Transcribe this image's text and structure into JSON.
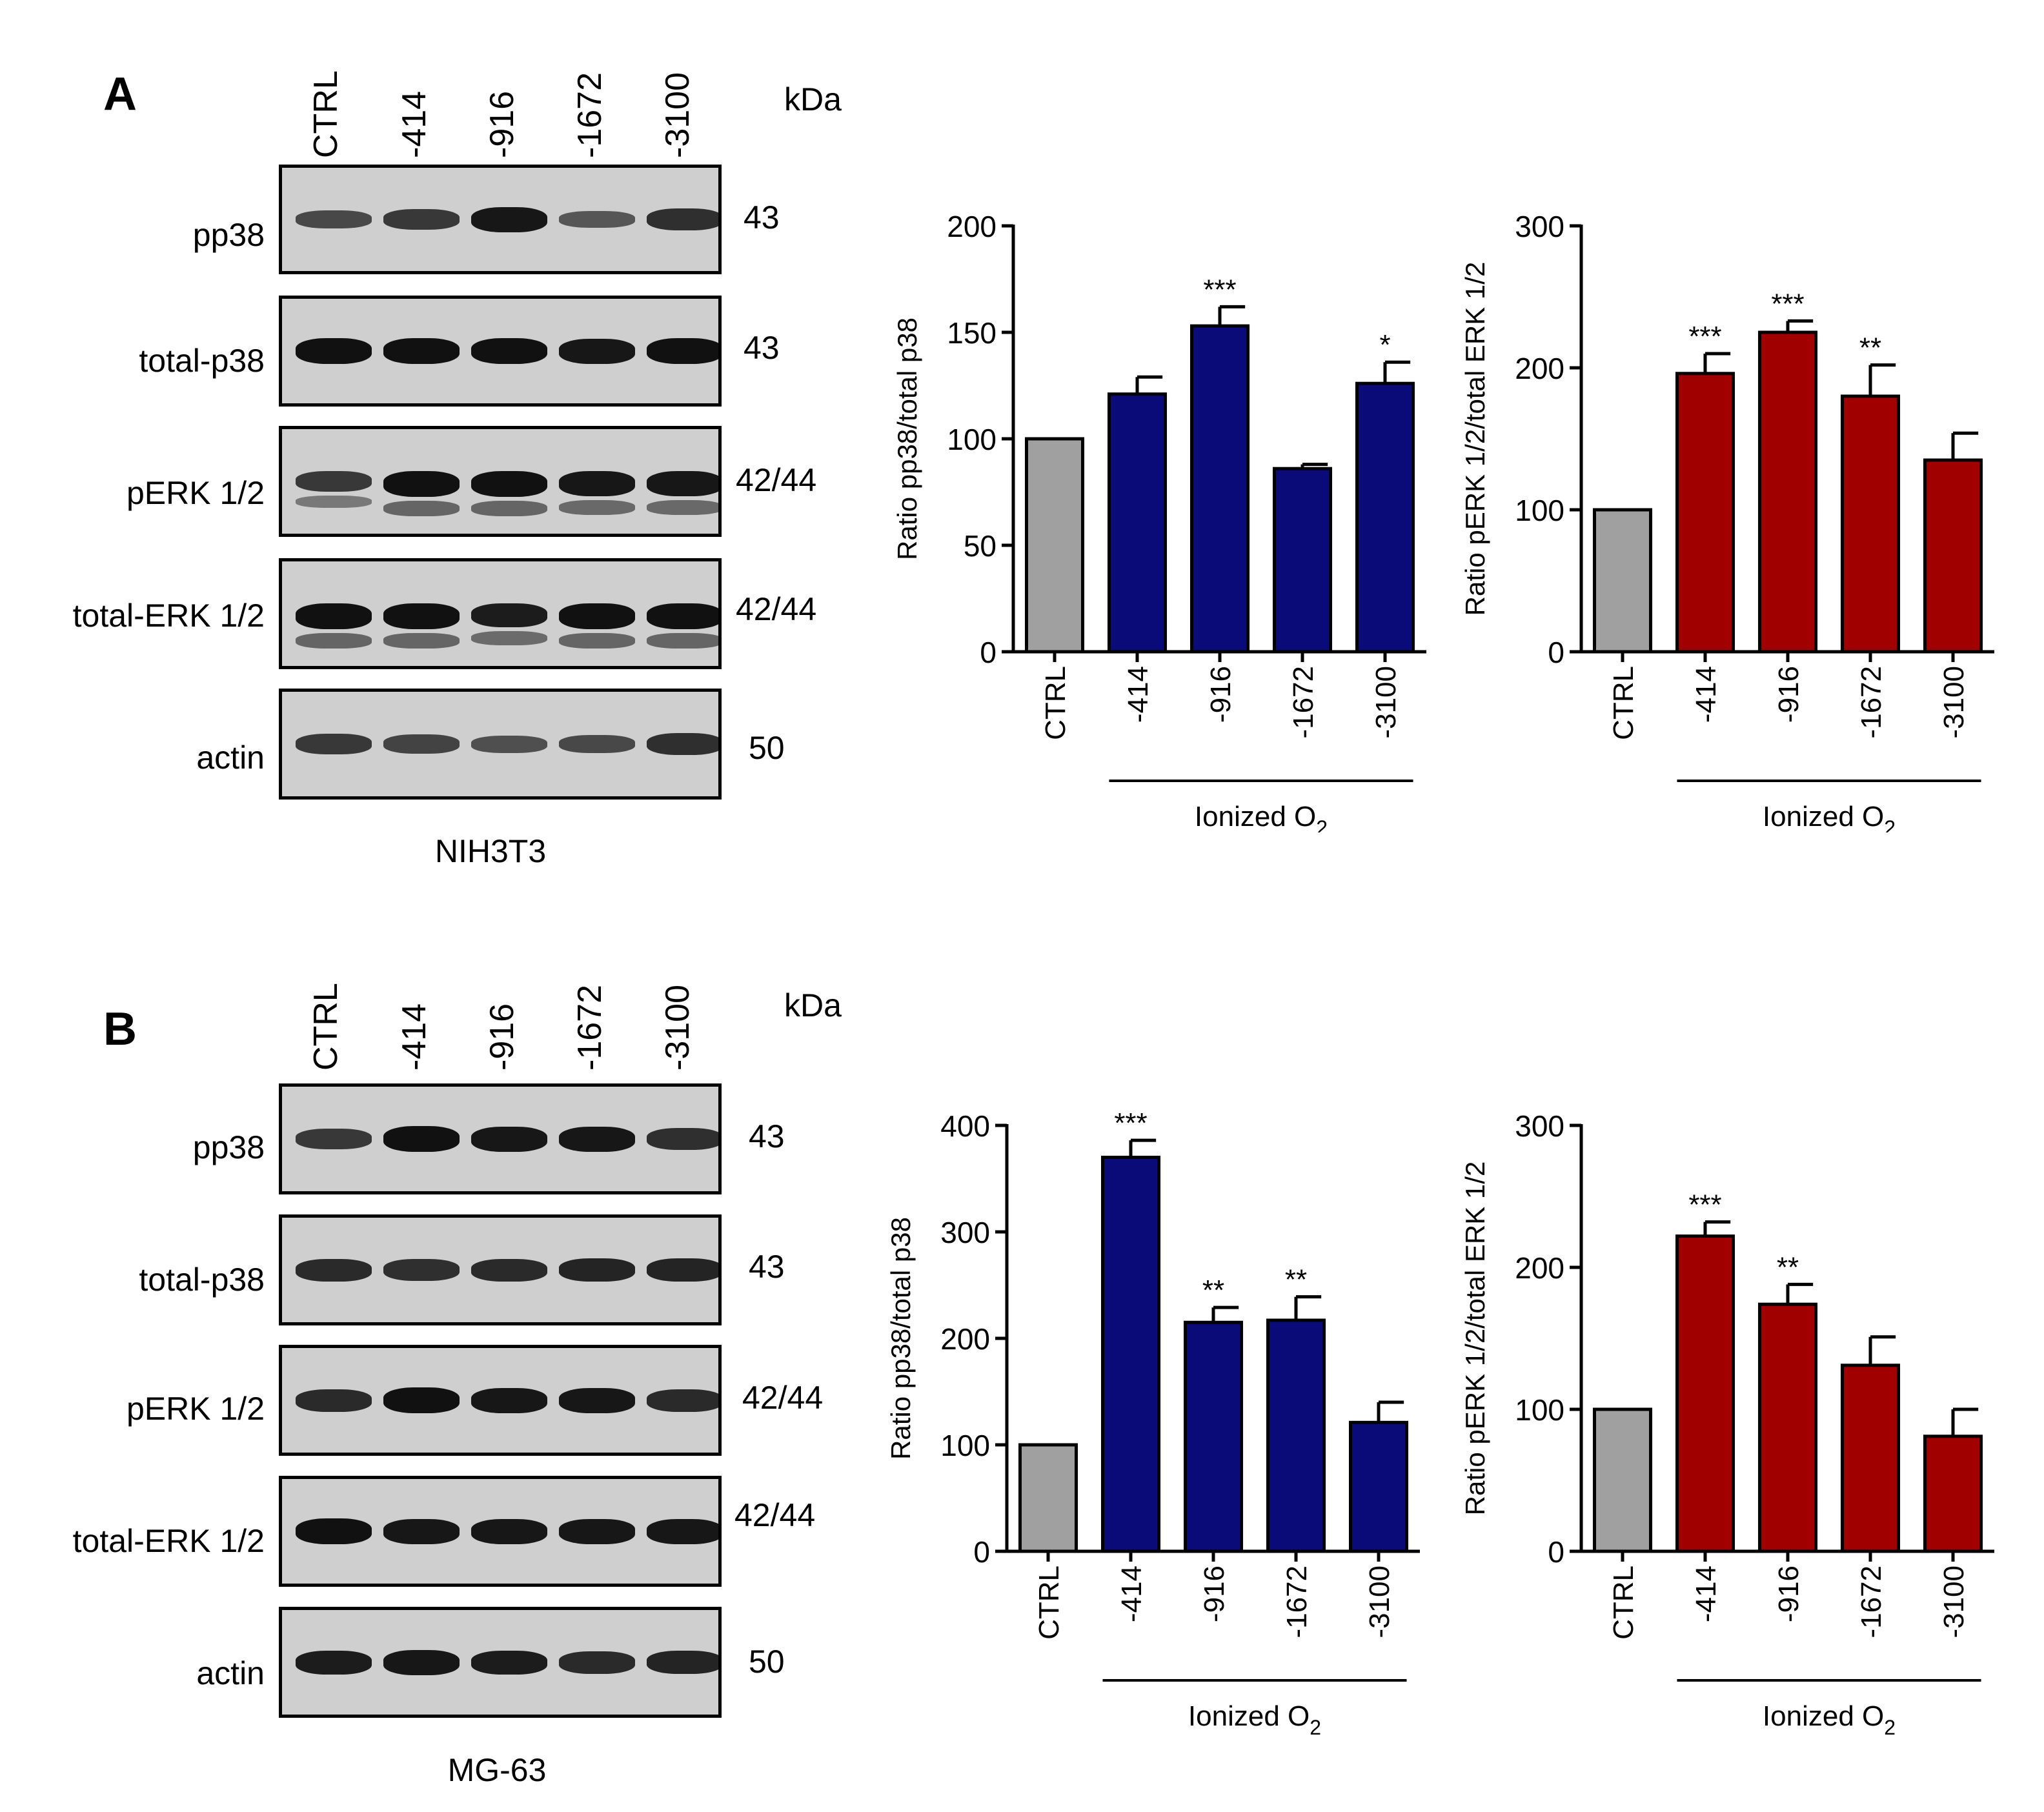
{
  "panels": [
    {
      "letter": "A",
      "cell_line": "NIH3T3",
      "kda_label": "kDa",
      "lanes": [
        "CTRL",
        "-414",
        "-916",
        "-1672",
        "-3100"
      ],
      "blots": [
        {
          "label": "pp38",
          "mw": "43",
          "intensity": [
            0.55,
            0.7,
            0.95,
            0.45,
            0.75
          ],
          "double": false
        },
        {
          "label": "total-p38",
          "mw": "43",
          "intensity": [
            1,
            1,
            1,
            0.95,
            1
          ],
          "double": false
        },
        {
          "label": "pERK 1/2",
          "mw": "42/44",
          "intensity": [
            0.7,
            1,
            1,
            0.95,
            0.95
          ],
          "double": true
        },
        {
          "label": "total-ERK 1/2",
          "mw": "42/44",
          "intensity": [
            1,
            1,
            0.9,
            1,
            1
          ],
          "double": true
        },
        {
          "label": "actin",
          "mw": "50",
          "intensity": [
            0.7,
            0.6,
            0.5,
            0.55,
            0.75
          ],
          "double": false
        }
      ]
    },
    {
      "letter": "B",
      "cell_line": "MG-63",
      "kda_label": "kDa",
      "lanes": [
        "CTRL",
        "-414",
        "-916",
        "-1672",
        "-3100"
      ],
      "blots": [
        {
          "label": "pp38",
          "mw": "43",
          "intensity": [
            0.7,
            1,
            0.95,
            0.95,
            0.75
          ],
          "double": false
        },
        {
          "label": "total-p38",
          "mw": "43",
          "intensity": [
            0.8,
            0.75,
            0.8,
            0.85,
            0.85
          ],
          "double": false
        },
        {
          "label": "pERK 1/2",
          "mw": "42/44",
          "intensity": [
            0.8,
            1,
            0.95,
            0.95,
            0.8
          ],
          "double": false
        },
        {
          "label": "total-ERK 1/2",
          "mw": "42/44",
          "intensity": [
            1,
            0.95,
            0.95,
            0.95,
            0.95
          ],
          "double": false
        },
        {
          "label": "actin",
          "mw": "50",
          "intensity": [
            0.9,
            0.95,
            0.9,
            0.8,
            0.85
          ],
          "double": false
        }
      ]
    }
  ],
  "chart_data": [
    {
      "id": "A-p38",
      "type": "bar",
      "categories": [
        "CTRL",
        "-414",
        "-916",
        "-1672",
        "-3100"
      ],
      "values": [
        100,
        121,
        153,
        86,
        126
      ],
      "errors": [
        0,
        8,
        9,
        2,
        10
      ],
      "significance": [
        "",
        "",
        "***",
        "",
        "*"
      ],
      "colors": [
        "#a0a0a0",
        "#0a0a78",
        "#0a0a78",
        "#0a0a78",
        "#0a0a78"
      ],
      "ylabel": "Ratio pp38/total p38",
      "ylim": [
        0,
        200
      ],
      "yticks": [
        0,
        50,
        100,
        150,
        200
      ],
      "xlabel": "Ionized O",
      "xlabel_sub": "2"
    },
    {
      "id": "A-erk",
      "type": "bar",
      "categories": [
        "CTRL",
        "-414",
        "-916",
        "-1672",
        "-3100"
      ],
      "values": [
        100,
        196,
        225,
        180,
        135
      ],
      "errors": [
        0,
        14,
        8,
        22,
        19
      ],
      "significance": [
        "",
        "***",
        "***",
        "**",
        ""
      ],
      "colors": [
        "#a0a0a0",
        "#a00000",
        "#a00000",
        "#a00000",
        "#a00000"
      ],
      "ylabel": "Ratio pERK 1/2/total ERK 1/2",
      "ylim": [
        0,
        300
      ],
      "yticks": [
        0,
        100,
        200,
        300
      ],
      "xlabel": "Ionized O",
      "xlabel_sub": "2"
    },
    {
      "id": "B-p38",
      "type": "bar",
      "categories": [
        "CTRL",
        "-414",
        "-916",
        "-1672",
        "-3100"
      ],
      "values": [
        100,
        370,
        215,
        217,
        121
      ],
      "errors": [
        0,
        16,
        14,
        22,
        19
      ],
      "significance": [
        "",
        "***",
        "**",
        "**",
        ""
      ],
      "colors": [
        "#a0a0a0",
        "#0a0a78",
        "#0a0a78",
        "#0a0a78",
        "#0a0a78"
      ],
      "ylabel": "Ratio pp38/total p38",
      "ylim": [
        0,
        400
      ],
      "yticks": [
        0,
        100,
        200,
        300,
        400
      ],
      "xlabel": "Ionized O",
      "xlabel_sub": "2"
    },
    {
      "id": "B-erk",
      "type": "bar",
      "categories": [
        "CTRL",
        "-414",
        "-916",
        "-1672",
        "-3100"
      ],
      "values": [
        100,
        222,
        174,
        131,
        81
      ],
      "errors": [
        0,
        10,
        14,
        20,
        19
      ],
      "significance": [
        "",
        "***",
        "**",
        "",
        ""
      ],
      "colors": [
        "#a0a0a0",
        "#a00000",
        "#a00000",
        "#a00000",
        "#a00000"
      ],
      "ylabel": "Ratio pERK 1/2/total ERK 1/2",
      "ylim": [
        0,
        300
      ],
      "yticks": [
        0,
        100,
        200,
        300
      ],
      "xlabel": "Ionized O",
      "xlabel_sub": "2"
    }
  ]
}
